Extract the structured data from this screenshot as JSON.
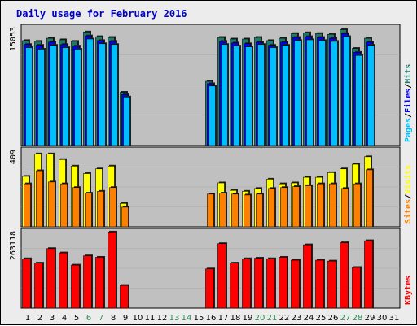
{
  "chart_data": {
    "type": "bar",
    "title": "Daily usage for February 2016",
    "colors": {
      "title": "#0000cc",
      "panel_bg": "#c0c0c0",
      "hits": "#1f7a6a",
      "files": "#0000ff",
      "pages": "#00bfff",
      "visits": "#ffff00",
      "sites": "#ff8000",
      "kbytes": "#ff0000",
      "weekend_label": "#2e8b57",
      "weekday_label": "#000000"
    },
    "days": [
      "1",
      "2",
      "3",
      "4",
      "5",
      "6",
      "7",
      "8",
      "9",
      "10",
      "11",
      "12",
      "13",
      "14",
      "15",
      "16",
      "17",
      "18",
      "19",
      "20",
      "21",
      "22",
      "23",
      "24",
      "25",
      "26",
      "27",
      "28",
      "29",
      "30",
      "31"
    ],
    "weekend_days": [
      6,
      7,
      13,
      14,
      20,
      21,
      27,
      28
    ],
    "panels": [
      {
        "name": "hits_files_pages",
        "max_label": "15053",
        "ymax": 15053,
        "legend": [
          "Pages",
          "/",
          "Files",
          "/",
          "Hits"
        ],
        "series": [
          {
            "name": "Hits",
            "values": [
              13400,
              13300,
              13700,
              13500,
              13300,
              14500,
              13900,
              13800,
              6800,
              0,
              0,
              0,
              0,
              0,
              0,
              8200,
              13800,
              13600,
              13600,
              13800,
              13400,
              13700,
              14300,
              14400,
              14300,
              14200,
              14800,
              12400,
              13700,
              0,
              0
            ]
          },
          {
            "name": "Files",
            "values": [
              12900,
              12800,
              13200,
              12900,
              12700,
              14000,
              13400,
              13300,
              6500,
              0,
              0,
              0,
              0,
              0,
              0,
              7900,
              13300,
              13100,
              13000,
              13200,
              12800,
              13200,
              13800,
              13900,
              13800,
              13700,
              14300,
              11900,
              13200,
              0,
              0
            ]
          },
          {
            "name": "Pages",
            "values": [
              12500,
              12300,
              12800,
              12500,
              12300,
              13600,
              13000,
              12900,
              6200,
              0,
              0,
              0,
              0,
              0,
              0,
              7600,
              12900,
              12700,
              12600,
              12900,
              12500,
              12800,
              13400,
              13500,
              13400,
              13300,
              13900,
              11500,
              12800,
              0,
              0
            ]
          }
        ]
      },
      {
        "name": "visits_sites",
        "max_label": "409",
        "ymax": 409,
        "legend": [
          "Sites",
          "/",
          "Visits"
        ],
        "series": [
          {
            "name": "Visits",
            "values": [
              270,
              390,
              390,
              360,
              325,
              285,
              310,
              325,
              125,
              0,
              0,
              0,
              0,
              0,
              0,
              0,
              235,
              195,
              190,
              205,
              255,
              230,
              235,
              265,
              265,
              290,
              310,
              335,
              375,
              0,
              0
            ]
          },
          {
            "name": "Sites",
            "values": [
              230,
              300,
              240,
              230,
              210,
              180,
              190,
              210,
              105,
              0,
              0,
              0,
              0,
              0,
              0,
              175,
              180,
              175,
              170,
              175,
              205,
              210,
              215,
              220,
              230,
              230,
              205,
              230,
              305,
              0,
              0
            ]
          }
        ]
      },
      {
        "name": "kbytes",
        "max_label": "263118",
        "ymax": 263118,
        "legend": [
          "KBytes"
        ],
        "series": [
          {
            "name": "KBytes",
            "values": [
              170000,
              155000,
              205000,
              190000,
              148000,
              180000,
              175000,
              262000,
              78000,
              0,
              0,
              0,
              0,
              0,
              0,
              135000,
              222000,
              155000,
              170000,
              172000,
              170000,
              175000,
              165000,
              218000,
              165000,
              162000,
              225000,
              140000,
              232000,
              0,
              0
            ]
          }
        ]
      }
    ]
  }
}
